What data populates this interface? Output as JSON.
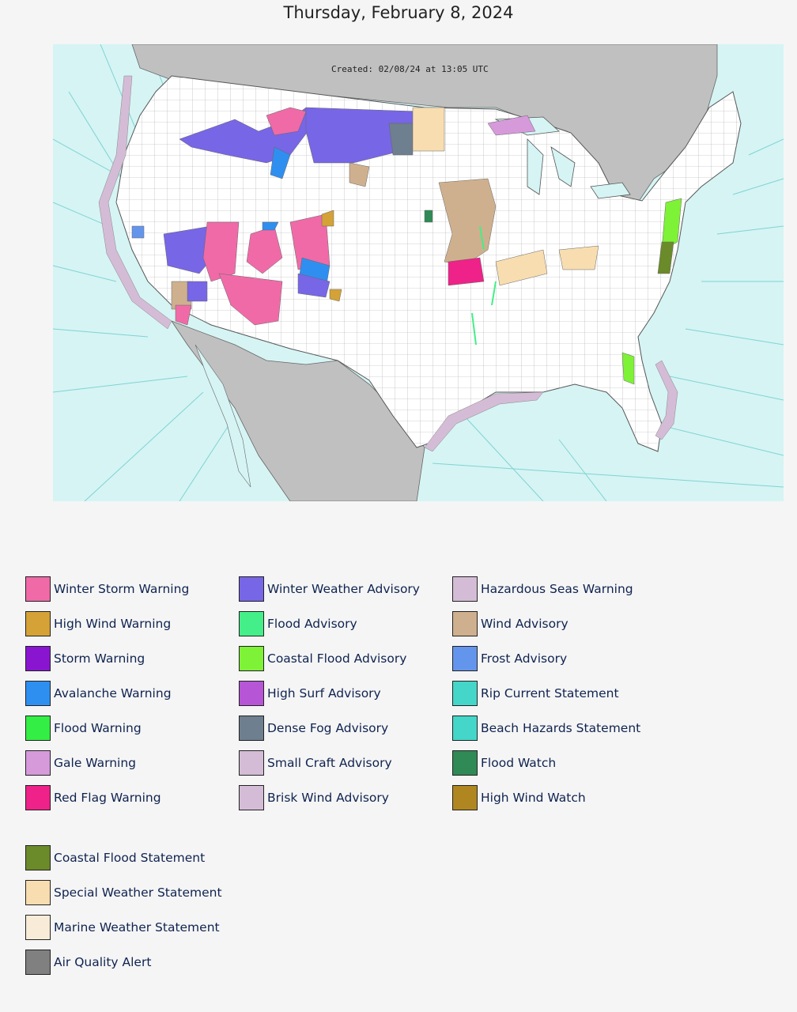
{
  "page": {
    "date": "Thursday, February 8, 2024"
  },
  "map": {
    "created": "Created: 02/08/24 at 13:05 UTC",
    "colors": {
      "ocean": "#d6f4f4",
      "land_outside": "#c0c0c0",
      "land_us": "#ffffff",
      "zone_lines": "#7fd3d3",
      "county_lines": "#9a9a9a"
    }
  },
  "legend": {
    "columns": [
      [
        {
          "label": "Winter Storm Warning",
          "color": "#f06aa8"
        },
        {
          "label": "High Wind Warning",
          "color": "#d4a237"
        },
        {
          "label": "Storm Warning",
          "color": "#8a15d1"
        },
        {
          "label": "Avalanche Warning",
          "color": "#2f8ff0"
        },
        {
          "label": "Flood Warning",
          "color": "#33ee44"
        },
        {
          "label": "Gale Warning",
          "color": "#d69adb"
        },
        {
          "label": "Red Flag Warning",
          "color": "#ee2288"
        }
      ],
      [
        {
          "label": "Winter Weather Advisory",
          "color": "#7766e6"
        },
        {
          "label": "Flood Advisory",
          "color": "#44ee88"
        },
        {
          "label": "Coastal Flood Advisory",
          "color": "#7ef236"
        },
        {
          "label": "High Surf Advisory",
          "color": "#b655d6"
        },
        {
          "label": "Dense Fog Advisory",
          "color": "#6e7f8f"
        },
        {
          "label": "Small Craft Advisory",
          "color": "#d4bcd6"
        },
        {
          "label": "Brisk Wind Advisory",
          "color": "#d4bcd6"
        }
      ],
      [
        {
          "label": "Hazardous Seas Warning",
          "color": "#d4bcd6"
        },
        {
          "label": "Wind Advisory",
          "color": "#cfb08e"
        },
        {
          "label": "Frost Advisory",
          "color": "#6495ed"
        },
        {
          "label": "Rip Current Statement",
          "color": "#44d6c9"
        },
        {
          "label": "Beach Hazards Statement",
          "color": "#44d6c9"
        },
        {
          "label": "Flood Watch",
          "color": "#2f8a55"
        },
        {
          "label": "High Wind Watch",
          "color": "#b08620"
        }
      ]
    ],
    "extra": [
      {
        "label": "Coastal Flood Statement",
        "color": "#6b8a2a"
      },
      {
        "label": "Special Weather Statement",
        "color": "#f8ddb0"
      },
      {
        "label": "Marine Weather Statement",
        "color": "#f8ebd8"
      },
      {
        "label": "Air Quality Alert",
        "color": "#808080"
      }
    ]
  }
}
